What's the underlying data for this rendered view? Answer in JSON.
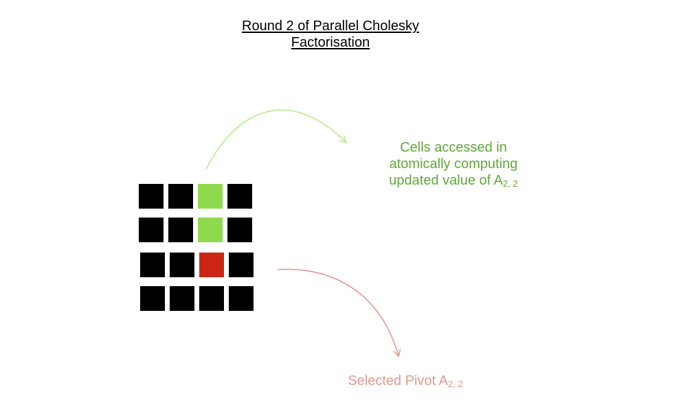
{
  "title": {
    "line1": "Round 2 of Parallel Cholesky",
    "line2": "Factorisation"
  },
  "colors": {
    "default": "#000000",
    "accessed": "#8fd94f",
    "pivot": "#cc2516",
    "green_text": "#5fa83a",
    "green_arrow": "#b6ec8e",
    "red_text": "#e2988f",
    "red_arrow": "#e2988f"
  },
  "matrix": [
    [
      "default",
      "default",
      "accessed",
      "default"
    ],
    [
      "default",
      "default",
      "accessed",
      "default"
    ],
    [
      "default",
      "default",
      "pivot",
      "default"
    ],
    [
      "default",
      "default",
      "default",
      "default"
    ]
  ],
  "accessed_label": {
    "line1": "Cells accessed in",
    "line2": "atomically computing",
    "line3_main": "updated value of A",
    "line3_sub": "2, 2"
  },
  "pivot_label": {
    "main": "Selected Pivot A",
    "sub": "2, 2"
  }
}
